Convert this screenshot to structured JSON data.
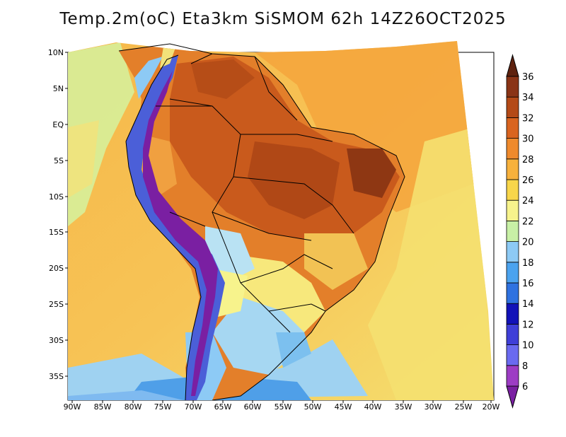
{
  "title": "Temp.2m(oC) Eta3km SiSMOM 62h 14Z26OCT2025",
  "lat_labels": [
    "10N",
    "5N",
    "EQ",
    "5S",
    "10S",
    "15S",
    "20S",
    "25S",
    "30S",
    "35S"
  ],
  "lon_labels": [
    "90W",
    "85W",
    "80W",
    "75W",
    "70W",
    "65W",
    "60W",
    "55W",
    "50W",
    "45W",
    "40W",
    "35W",
    "30W",
    "25W",
    "20W"
  ],
  "colorbar": {
    "unit": "oC",
    "labels": [
      "6",
      "8",
      "10",
      "12",
      "14",
      "16",
      "18",
      "20",
      "22",
      "24",
      "26",
      "28",
      "30",
      "32",
      "34",
      "36"
    ],
    "colors": [
      "#7a1fa2",
      "#9d3cc4",
      "#6a6af0",
      "#3f3fd8",
      "#1212b8",
      "#2f72e0",
      "#4ba3ef",
      "#8dcaf5",
      "#c8f0a6",
      "#f7f38c",
      "#f8d64a",
      "#f7b13c",
      "#ef8a2c",
      "#d9641f",
      "#b44a17",
      "#8a3416",
      "#5e220f"
    ]
  },
  "colors": {
    "ocean_warm": "#f6b84a",
    "ocean_mid": "#f7d060",
    "ocean_cool": "#f2ea7a",
    "south_cool": "#8fcbf3",
    "land_hot": "#c95a1c",
    "land_very_hot": "#9c3e14",
    "andes": "#6a2aa8"
  }
}
